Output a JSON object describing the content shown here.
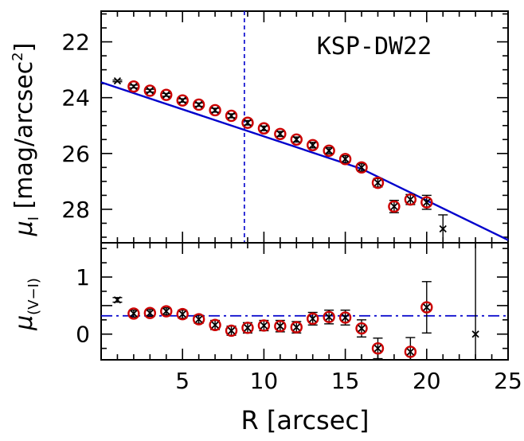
{
  "chart_data": [
    {
      "type": "scatter",
      "panel": "top",
      "annotation": "KSP-DW22",
      "xlabel": "R [arcsec]",
      "ylabel_main": "μ",
      "ylabel_sub": "I",
      "ylabel_bracket": "[mag/arcsec",
      "ylabel_sup": "2",
      "ylabel_close": "]",
      "xlim": [
        0,
        25
      ],
      "ylim": [
        29.2,
        20.9
      ],
      "y_inverted": true,
      "xticks": [
        5,
        10,
        15,
        20,
        25
      ],
      "yticks": [
        22,
        24,
        26,
        28
      ],
      "vline_x": 8.8,
      "fit_line": {
        "x0": 0,
        "y0": 23.45,
        "breaks": [
          [
            16,
            26.55
          ]
        ],
        "x1": 25,
        "y1": 29.1,
        "color": "#0000cc"
      },
      "circled_points": {
        "x": [
          2,
          3,
          4,
          5,
          6,
          7,
          8,
          9,
          10,
          11,
          12,
          13,
          14,
          15,
          16,
          17,
          18,
          19,
          20
        ],
        "y": [
          23.6,
          23.75,
          23.9,
          24.1,
          24.25,
          24.45,
          24.65,
          24.9,
          25.1,
          25.3,
          25.5,
          25.7,
          25.9,
          26.2,
          26.5,
          27.05,
          27.9,
          27.65,
          27.75
        ],
        "yerr": [
          0.05,
          0.05,
          0.05,
          0.06,
          0.06,
          0.07,
          0.07,
          0.08,
          0.08,
          0.09,
          0.09,
          0.1,
          0.11,
          0.12,
          0.13,
          0.15,
          0.22,
          0.18,
          0.25
        ]
      },
      "uncircled_points": {
        "x": [
          1,
          21
        ],
        "y": [
          23.4,
          28.7
        ],
        "yerr": [
          0.03,
          0.5
        ]
      },
      "colors": {
        "marker_circle": "#cc0000",
        "marker_cross": "#000000",
        "fit": "#0000cc"
      }
    },
    {
      "type": "scatter",
      "panel": "bottom",
      "ylabel_main": "μ",
      "ylabel_sub": "(V−I)",
      "xlim": [
        0,
        25
      ],
      "ylim": [
        -0.45,
        1.6
      ],
      "xticks": [
        5,
        10,
        15,
        20,
        25
      ],
      "yticks": [
        0,
        0.5,
        1
      ],
      "yticklabels": [
        "0",
        "",
        "1"
      ],
      "hline_y": 0.32,
      "circled_points": {
        "x": [
          2,
          3,
          4,
          5,
          6,
          7,
          8,
          9,
          10,
          11,
          12,
          13,
          14,
          15,
          16,
          17,
          19,
          20
        ],
        "y": [
          0.36,
          0.37,
          0.4,
          0.35,
          0.26,
          0.16,
          0.06,
          0.11,
          0.15,
          0.14,
          0.12,
          0.27,
          0.3,
          0.29,
          0.1,
          -0.25,
          -0.31,
          0.47
        ],
        "yerr": [
          0.06,
          0.06,
          0.06,
          0.07,
          0.07,
          0.08,
          0.08,
          0.09,
          0.09,
          0.1,
          0.1,
          0.11,
          0.12,
          0.13,
          0.15,
          0.18,
          0.25,
          0.45
        ]
      },
      "uncircled_points": {
        "x": [
          1,
          23
        ],
        "y": [
          0.6,
          0.0
        ],
        "yerr": [
          0.04,
          1.6
        ]
      },
      "colors": {
        "marker_circle": "#cc0000",
        "marker_cross": "#000000",
        "hline": "#0000cc"
      }
    }
  ]
}
